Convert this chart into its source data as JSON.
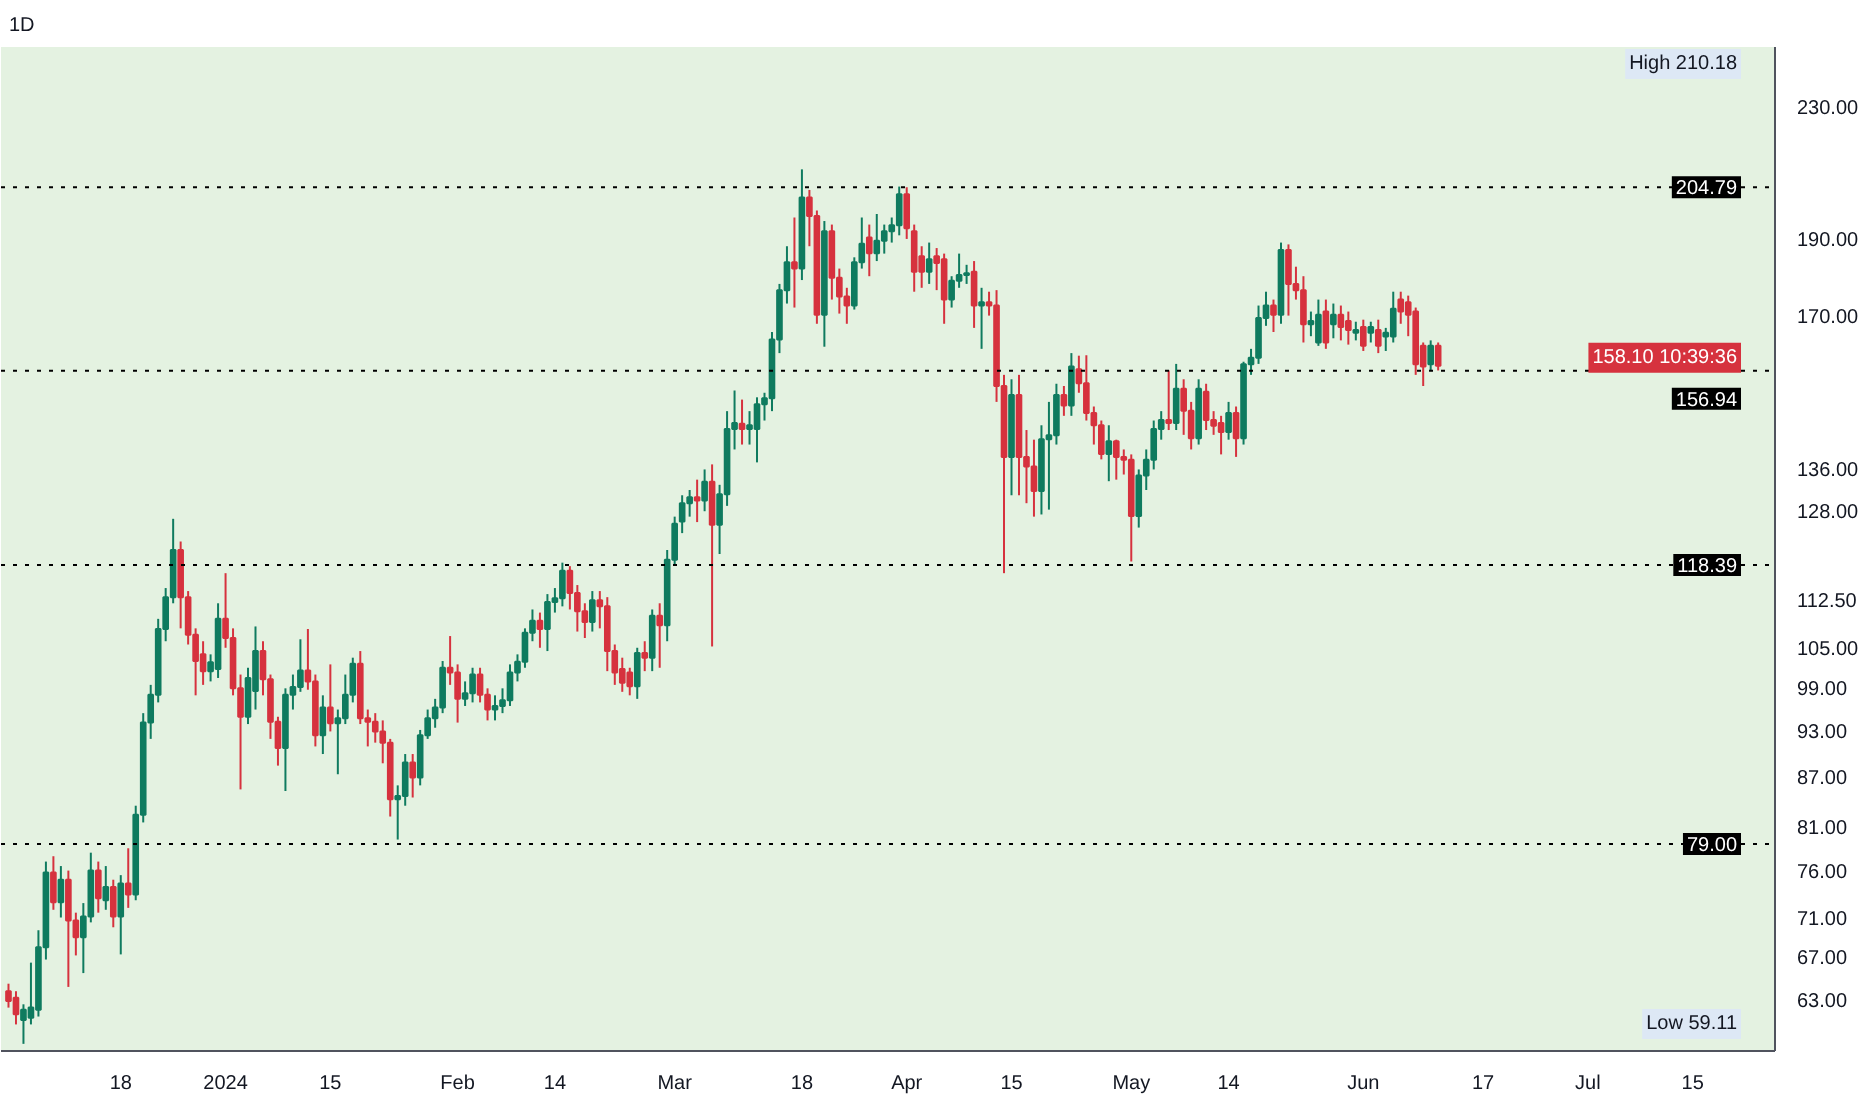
{
  "chart_data": {
    "type": "candlestick",
    "title": "1D",
    "x": [
      "2023-12-03",
      "2023-12-04",
      "2023-12-05",
      "2023-12-06",
      "2023-12-07",
      "2023-12-08",
      "2023-12-09",
      "2023-12-10",
      "2023-12-11",
      "2023-12-12",
      "2023-12-13",
      "2023-12-14",
      "2023-12-15",
      "2023-12-16",
      "2023-12-17",
      "2023-12-18",
      "2023-12-19",
      "2023-12-20",
      "2023-12-21",
      "2023-12-22",
      "2023-12-23",
      "2023-12-24",
      "2023-12-25",
      "2023-12-26",
      "2023-12-27",
      "2023-12-28",
      "2023-12-29",
      "2023-12-30",
      "2023-12-31",
      "2024-01-01",
      "2024-01-02",
      "2024-01-03",
      "2024-01-04",
      "2024-01-05",
      "2024-01-06",
      "2024-01-07",
      "2024-01-08",
      "2024-01-09",
      "2024-01-10",
      "2024-01-11",
      "2024-01-12",
      "2024-01-13",
      "2024-01-14",
      "2024-01-15",
      "2024-01-16",
      "2024-01-17",
      "2024-01-18",
      "2024-01-19",
      "2024-01-20",
      "2024-01-21",
      "2024-01-22",
      "2024-01-23",
      "2024-01-24",
      "2024-01-25",
      "2024-01-26",
      "2024-01-27",
      "2024-01-28",
      "2024-01-29",
      "2024-01-30",
      "2024-01-31",
      "2024-02-01",
      "2024-02-02",
      "2024-02-03",
      "2024-02-04",
      "2024-02-05",
      "2024-02-06",
      "2024-02-07",
      "2024-02-08",
      "2024-02-09",
      "2024-02-10",
      "2024-02-11",
      "2024-02-12",
      "2024-02-13",
      "2024-02-14",
      "2024-02-15",
      "2024-02-16",
      "2024-02-17",
      "2024-02-18",
      "2024-02-19",
      "2024-02-20",
      "2024-02-21",
      "2024-02-22",
      "2024-02-23",
      "2024-02-24",
      "2024-02-25",
      "2024-02-26",
      "2024-02-27",
      "2024-02-28",
      "2024-02-29",
      "2024-03-01",
      "2024-03-02",
      "2024-03-03",
      "2024-03-04",
      "2024-03-05",
      "2024-03-06",
      "2024-03-07",
      "2024-03-08",
      "2024-03-09",
      "2024-03-10",
      "2024-03-11",
      "2024-03-12",
      "2024-03-13",
      "2024-03-14",
      "2024-03-15",
      "2024-03-16",
      "2024-03-17",
      "2024-03-18",
      "2024-03-19",
      "2024-03-20",
      "2024-03-21",
      "2024-03-22",
      "2024-03-23",
      "2024-03-24",
      "2024-03-25",
      "2024-03-26",
      "2024-03-27",
      "2024-03-28",
      "2024-03-29",
      "2024-03-30",
      "2024-03-31",
      "2024-04-01",
      "2024-04-02",
      "2024-04-03",
      "2024-04-04",
      "2024-04-05",
      "2024-04-06",
      "2024-04-07",
      "2024-04-08",
      "2024-04-09",
      "2024-04-10",
      "2024-04-11",
      "2024-04-12",
      "2024-04-13",
      "2024-04-14",
      "2024-04-15",
      "2024-04-16",
      "2024-04-17",
      "2024-04-18",
      "2024-04-19",
      "2024-04-20",
      "2024-04-21",
      "2024-04-22",
      "2024-04-23",
      "2024-04-24",
      "2024-04-25",
      "2024-04-26",
      "2024-04-27",
      "2024-04-28",
      "2024-04-29",
      "2024-04-30",
      "2024-05-01",
      "2024-05-02",
      "2024-05-03",
      "2024-05-04",
      "2024-05-05",
      "2024-05-06",
      "2024-05-07",
      "2024-05-08",
      "2024-05-09",
      "2024-05-10",
      "2024-05-11",
      "2024-05-12",
      "2024-05-13",
      "2024-05-14",
      "2024-05-15",
      "2024-05-16",
      "2024-05-17",
      "2024-05-18",
      "2024-05-19",
      "2024-05-20",
      "2024-05-21",
      "2024-05-22",
      "2024-05-23",
      "2024-05-24",
      "2024-05-25",
      "2024-05-26",
      "2024-05-27",
      "2024-05-28",
      "2024-05-29",
      "2024-05-30",
      "2024-05-31",
      "2024-06-01",
      "2024-06-02",
      "2024-06-03",
      "2024-06-04",
      "2024-06-05",
      "2024-06-06",
      "2024-06-07",
      "2024-06-08",
      "2024-06-09",
      "2024-06-10",
      "2024-06-11"
    ],
    "ohlc": [
      [
        63.8,
        64.5,
        62.3,
        62.9
      ],
      [
        63.2,
        63.8,
        60.8,
        61.7
      ],
      [
        61.2,
        62.6,
        59.11,
        62.1
      ],
      [
        61.4,
        66.5,
        60.8,
        62.3
      ],
      [
        62.1,
        69.7,
        61.5,
        68.0
      ],
      [
        68.0,
        77.0,
        66.8,
        75.8
      ],
      [
        75.8,
        77.6,
        71.8,
        72.6
      ],
      [
        72.6,
        76.5,
        71.0,
        75.0
      ],
      [
        75.0,
        76.0,
        64.2,
        70.7
      ],
      [
        70.7,
        71.5,
        67.2,
        69.0
      ],
      [
        69.0,
        72.5,
        65.5,
        71.1
      ],
      [
        71.1,
        78.0,
        70.5,
        76.0
      ],
      [
        76.0,
        77.0,
        71.5,
        73.0
      ],
      [
        72.8,
        76.5,
        71.8,
        74.2
      ],
      [
        74.2,
        75.0,
        70.0,
        71.1
      ],
      [
        71.1,
        75.5,
        67.3,
        74.6
      ],
      [
        74.6,
        78.5,
        72.0,
        73.4
      ],
      [
        73.4,
        83.5,
        72.8,
        82.4
      ],
      [
        82.4,
        95.5,
        81.5,
        94.2
      ],
      [
        94.2,
        99.5,
        92.0,
        98.1
      ],
      [
        98.1,
        109.5,
        97.0,
        107.9
      ],
      [
        107.9,
        114.5,
        106.0,
        113.0
      ],
      [
        113.0,
        126.6,
        112.0,
        121.0
      ],
      [
        121.0,
        122.5,
        108.0,
        113.0
      ],
      [
        113.0,
        114.0,
        105.5,
        107.0
      ],
      [
        107.0,
        108.0,
        98.0,
        103.0
      ],
      [
        104.0,
        106.0,
        99.5,
        101.5
      ],
      [
        101.5,
        104.0,
        100.0,
        102.8
      ],
      [
        101.8,
        112.0,
        100.5,
        109.5
      ],
      [
        109.5,
        117.0,
        105.0,
        106.5
      ],
      [
        106.5,
        108.0,
        98.0,
        99.0
      ],
      [
        99.0,
        101.0,
        85.5,
        95.0
      ],
      [
        95.0,
        102.0,
        94.0,
        100.5
      ],
      [
        98.6,
        108.3,
        96.0,
        104.5
      ],
      [
        104.5,
        106.0,
        98.0,
        100.3
      ],
      [
        100.3,
        101.0,
        92.0,
        94.3
      ],
      [
        94.3,
        95.0,
        88.5,
        90.8
      ],
      [
        90.8,
        99.0,
        85.3,
        98.1
      ],
      [
        98.1,
        101.0,
        96.0,
        99.2
      ],
      [
        99.2,
        106.3,
        98.5,
        101.6
      ],
      [
        101.6,
        107.9,
        98.8,
        100.0
      ],
      [
        100.0,
        101.0,
        91.0,
        92.5
      ],
      [
        92.5,
        98.0,
        90.0,
        96.3
      ],
      [
        96.3,
        102.5,
        93.0,
        94.1
      ],
      [
        94.1,
        96.0,
        87.4,
        94.8
      ],
      [
        94.8,
        101.0,
        94.0,
        98.1
      ],
      [
        98.1,
        103.5,
        97.0,
        102.6
      ],
      [
        102.6,
        104.5,
        94.0,
        94.8
      ],
      [
        94.8,
        96.0,
        91.0,
        94.3
      ],
      [
        94.3,
        95.5,
        91.5,
        93.0
      ],
      [
        93.0,
        94.5,
        88.8,
        91.5
      ],
      [
        91.5,
        92.0,
        82.2,
        84.3
      ],
      [
        84.3,
        86.0,
        79.5,
        84.7
      ],
      [
        84.7,
        90.0,
        83.5,
        88.9
      ],
      [
        88.9,
        90.0,
        84.5,
        87.0
      ],
      [
        87.0,
        93.2,
        86.0,
        92.5
      ],
      [
        92.5,
        96.0,
        92.0,
        94.8
      ],
      [
        94.8,
        97.5,
        93.5,
        96.3
      ],
      [
        96.3,
        103.0,
        95.5,
        102.0
      ],
      [
        102.0,
        106.8,
        99.5,
        101.3
      ],
      [
        101.3,
        102.5,
        94.2,
        97.5
      ],
      [
        97.5,
        100.0,
        96.5,
        98.3
      ],
      [
        98.3,
        102.0,
        97.0,
        101.0
      ],
      [
        101.0,
        102.0,
        97.0,
        98.1
      ],
      [
        98.1,
        99.0,
        94.5,
        96.0
      ],
      [
        96.0,
        98.0,
        94.5,
        96.5
      ],
      [
        96.5,
        99.0,
        95.5,
        97.3
      ],
      [
        97.3,
        102.5,
        96.5,
        101.3
      ],
      [
        101.3,
        104.0,
        100.0,
        102.9
      ],
      [
        102.9,
        108.0,
        102.0,
        107.3
      ],
      [
        107.3,
        111.0,
        106.0,
        109.2
      ],
      [
        109.2,
        110.5,
        105.0,
        107.9
      ],
      [
        107.9,
        113.5,
        104.5,
        112.2
      ],
      [
        112.2,
        114.5,
        110.5,
        112.8
      ],
      [
        112.8,
        118.8,
        111.5,
        117.4
      ],
      [
        117.4,
        118.2,
        111.0,
        113.7
      ],
      [
        113.7,
        115.0,
        107.5,
        110.7
      ],
      [
        110.7,
        112.0,
        106.5,
        109.0
      ],
      [
        109.0,
        114.0,
        107.5,
        112.5
      ],
      [
        112.5,
        114.0,
        108.0,
        111.5
      ],
      [
        111.5,
        113.0,
        101.5,
        104.5
      ],
      [
        104.5,
        105.5,
        99.5,
        101.3
      ],
      [
        101.8,
        103.5,
        98.5,
        99.8
      ],
      [
        101.3,
        102.0,
        98.0,
        99.3
      ],
      [
        99.3,
        105.0,
        97.5,
        104.2
      ],
      [
        104.2,
        106.0,
        101.5,
        103.5
      ],
      [
        103.5,
        111.0,
        101.5,
        110.0
      ],
      [
        110.0,
        112.0,
        102.0,
        108.5
      ],
      [
        108.5,
        121.0,
        106.0,
        119.3
      ],
      [
        119.3,
        127.0,
        118.5,
        125.7
      ],
      [
        126.1,
        131.0,
        124.0,
        129.5
      ],
      [
        129.5,
        132.0,
        127.0,
        130.6
      ],
      [
        130.6,
        134.0,
        126.0,
        130.0
      ],
      [
        130.0,
        136.0,
        128.0,
        133.6
      ],
      [
        133.6,
        137.0,
        105.2,
        125.5
      ],
      [
        125.5,
        133.0,
        120.3,
        131.2
      ],
      [
        131.2,
        148.0,
        129.0,
        144.2
      ],
      [
        144.2,
        152.5,
        140.0,
        145.5
      ],
      [
        145.3,
        150.5,
        141.0,
        144.2
      ],
      [
        144.2,
        148.0,
        141.0,
        145.0
      ],
      [
        144.2,
        151.0,
        137.4,
        149.5
      ],
      [
        149.5,
        152.0,
        146.0,
        150.8
      ],
      [
        150.8,
        166.0,
        148.0,
        164.2
      ],
      [
        164.2,
        178.0,
        161.0,
        176.4
      ],
      [
        176.4,
        188.0,
        173.0,
        183.7
      ],
      [
        183.7,
        196.0,
        172.0,
        182.0
      ],
      [
        182.0,
        210.18,
        179.0,
        201.8
      ],
      [
        201.8,
        204.0,
        188.0,
        196.4
      ],
      [
        196.4,
        198.0,
        168.0,
        170.2
      ],
      [
        170.2,
        195.0,
        162.5,
        192.1
      ],
      [
        192.1,
        194.0,
        174.0,
        179.6
      ],
      [
        179.6,
        182.0,
        170.5,
        174.8
      ],
      [
        174.8,
        177.0,
        168.0,
        172.5
      ],
      [
        172.5,
        185.0,
        171.5,
        183.7
      ],
      [
        183.7,
        196.0,
        182.0,
        188.7
      ],
      [
        190.4,
        194.0,
        180.0,
        186.1
      ],
      [
        186.1,
        197.0,
        184.0,
        189.5
      ],
      [
        189.5,
        194.0,
        186.0,
        192.1
      ],
      [
        192.1,
        196.0,
        189.0,
        193.8
      ],
      [
        193.8,
        205.0,
        191.0,
        202.7
      ],
      [
        202.7,
        204.79,
        190.0,
        193.0
      ],
      [
        192.1,
        194.0,
        176.0,
        181.2
      ],
      [
        185.3,
        188.0,
        177.0,
        181.2
      ],
      [
        181.2,
        189.0,
        178.0,
        184.5
      ],
      [
        185.3,
        187.5,
        176.4,
        183.5
      ],
      [
        184.5,
        186.0,
        168.0,
        174.0
      ],
      [
        174.0,
        180.0,
        172.0,
        178.8
      ],
      [
        178.8,
        186.0,
        177.0,
        180.3
      ],
      [
        180.3,
        183.0,
        178.0,
        180.8
      ],
      [
        181.2,
        184.0,
        167.0,
        172.5
      ],
      [
        172.5,
        177.0,
        162.0,
        173.3
      ],
      [
        173.3,
        176.0,
        170.0,
        172.5
      ],
      [
        172.5,
        176.4,
        150.0,
        153.5
      ],
      [
        153.5,
        156.0,
        117.0,
        138.5
      ],
      [
        138.5,
        155.0,
        131.0,
        151.5
      ],
      [
        151.5,
        156.0,
        131.0,
        138.5
      ],
      [
        138.5,
        144.0,
        129.5,
        136.6
      ],
      [
        136.6,
        142.0,
        127.0,
        131.8
      ],
      [
        131.8,
        145.0,
        127.4,
        142.1
      ],
      [
        142.1,
        150.0,
        128.3,
        142.9
      ],
      [
        142.9,
        154.0,
        141.0,
        151.5
      ],
      [
        151.5,
        153.5,
        147.0,
        149.2
      ],
      [
        149.2,
        161.0,
        147.0,
        157.9
      ],
      [
        157.3,
        160.4,
        152.0,
        154.1
      ],
      [
        154.1,
        160.5,
        146.0,
        147.6
      ],
      [
        147.6,
        149.0,
        141.0,
        145.0
      ],
      [
        145.0,
        146.0,
        138.0,
        139.1
      ],
      [
        139.1,
        145.0,
        133.7,
        141.7
      ],
      [
        141.7,
        142.0,
        134.0,
        138.5
      ],
      [
        138.5,
        140.0,
        135.0,
        137.9
      ],
      [
        137.9,
        139.0,
        119.0,
        127.1
      ],
      [
        127.1,
        136.0,
        125.0,
        134.8
      ],
      [
        134.8,
        140.0,
        132.0,
        137.9
      ],
      [
        137.9,
        146.0,
        136.0,
        144.2
      ],
      [
        144.2,
        148.0,
        142.0,
        146.1
      ],
      [
        146.1,
        157.0,
        144.0,
        145.5
      ],
      [
        145.5,
        158.5,
        144.0,
        152.9
      ],
      [
        152.9,
        155.0,
        143.0,
        148.1
      ],
      [
        148.1,
        150.0,
        140.0,
        142.3
      ],
      [
        142.3,
        155.0,
        141.0,
        152.9
      ],
      [
        152.2,
        154.0,
        144.0,
        146.1
      ],
      [
        146.1,
        148.0,
        143.0,
        144.9
      ],
      [
        145.5,
        147.0,
        139.0,
        143.6
      ],
      [
        143.6,
        150.0,
        142.0,
        147.6
      ],
      [
        147.6,
        149.0,
        138.5,
        142.3
      ],
      [
        142.3,
        159.0,
        141.0,
        158.4
      ],
      [
        158.4,
        162.0,
        156.0,
        159.9
      ],
      [
        159.9,
        172.5,
        158.5,
        169.4
      ],
      [
        169.4,
        176.0,
        167.5,
        172.5
      ],
      [
        172.5,
        174.0,
        166.0,
        170.2
      ],
      [
        170.2,
        189.0,
        168.0,
        187.0
      ],
      [
        187.0,
        188.5,
        170.0,
        178.0
      ],
      [
        178.0,
        182.5,
        174.0,
        176.4
      ],
      [
        176.4,
        180.0,
        163.5,
        167.9
      ],
      [
        167.9,
        171.0,
        165.0,
        168.7
      ],
      [
        163.5,
        174.0,
        162.7,
        170.2
      ],
      [
        171.0,
        174.0,
        162.0,
        163.5
      ],
      [
        167.9,
        173.0,
        164.5,
        170.2
      ],
      [
        170.2,
        172.5,
        164.0,
        167.2
      ],
      [
        168.7,
        171.0,
        163.0,
        166.5
      ],
      [
        165.8,
        168.5,
        164.0,
        166.5
      ],
      [
        167.2,
        169.0,
        161.5,
        162.7
      ],
      [
        165.8,
        168.5,
        163.5,
        167.2
      ],
      [
        166.5,
        169.0,
        161.0,
        162.7
      ],
      [
        164.9,
        167.0,
        161.5,
        165.8
      ],
      [
        164.9,
        176.0,
        163.5,
        171.7
      ],
      [
        174.0,
        176.0,
        168.0,
        171.0
      ],
      [
        173.3,
        175.0,
        165.0,
        170.2
      ],
      [
        171.0,
        172.0,
        156.0,
        158.4
      ],
      [
        162.7,
        163.5,
        153.5,
        157.9
      ],
      [
        158.4,
        164.0,
        157.0,
        162.7
      ],
      [
        162.7,
        163.5,
        157.0,
        158.1
      ]
    ],
    "log": true,
    "xlim": [
      "2023-12-02",
      "2024-07-26"
    ],
    "xticks": [
      {
        "value": "2023-12-18",
        "label": "18"
      },
      {
        "value": "2024-01-01",
        "label": "2024"
      },
      {
        "value": "2024-01-15",
        "label": "15"
      },
      {
        "value": "2024-02-01",
        "label": "Feb"
      },
      {
        "value": "2024-02-14",
        "label": "14"
      },
      {
        "value": "2024-03-01",
        "label": "Mar"
      },
      {
        "value": "2024-03-18",
        "label": "18"
      },
      {
        "value": "2024-04-01",
        "label": "Apr"
      },
      {
        "value": "2024-04-15",
        "label": "15"
      },
      {
        "value": "2024-05-01",
        "label": "May"
      },
      {
        "value": "2024-05-14",
        "label": "14"
      },
      {
        "value": "2024-06-01",
        "label": "Jun"
      },
      {
        "value": "2024-06-17",
        "label": "17"
      },
      {
        "value": "2024-07-01",
        "label": "Jul"
      },
      {
        "value": "2024-07-15",
        "label": "15"
      }
    ],
    "ylim": [
      58.5,
      251
    ],
    "yticks": [
      {
        "value": 63,
        "label": "63.00"
      },
      {
        "value": 67,
        "label": "67.00"
      },
      {
        "value": 71,
        "label": "71.00"
      },
      {
        "value": 76,
        "label": "76.00"
      },
      {
        "value": 81,
        "label": "81.00"
      },
      {
        "value": 87,
        "label": "87.00"
      },
      {
        "value": 93,
        "label": "93.00"
      },
      {
        "value": 99,
        "label": "99.00"
      },
      {
        "value": 105,
        "label": "105.00"
      },
      {
        "value": 112.5,
        "label": "112.50"
      },
      {
        "value": 128,
        "label": "128.00"
      },
      {
        "value": 136,
        "label": "136.00"
      },
      {
        "value": 170,
        "label": "170.00"
      },
      {
        "value": 190,
        "label": "190.00"
      },
      {
        "value": 230,
        "label": "230.00"
      }
    ],
    "ref_lines": [
      {
        "axis": "y",
        "value": 204.79,
        "label": "204.79",
        "color": "#000000",
        "line_style": "dotted"
      },
      {
        "axis": "y",
        "value": 156.94,
        "label": "156.94",
        "color": "#000000",
        "line_style": "dotted"
      },
      {
        "axis": "y",
        "value": 118.39,
        "label": "118.39",
        "color": "#000000",
        "line_style": "dotted"
      },
      {
        "axis": "y",
        "value": 79,
        "label": "79.00",
        "color": "#000000",
        "line_style": "dotted"
      }
    ],
    "annotations": [
      "High 210.18",
      "Low 59.11",
      {
        "text": "158.10 10:39:36",
        "y": 158.1
      }
    ],
    "grid": false
  }
}
